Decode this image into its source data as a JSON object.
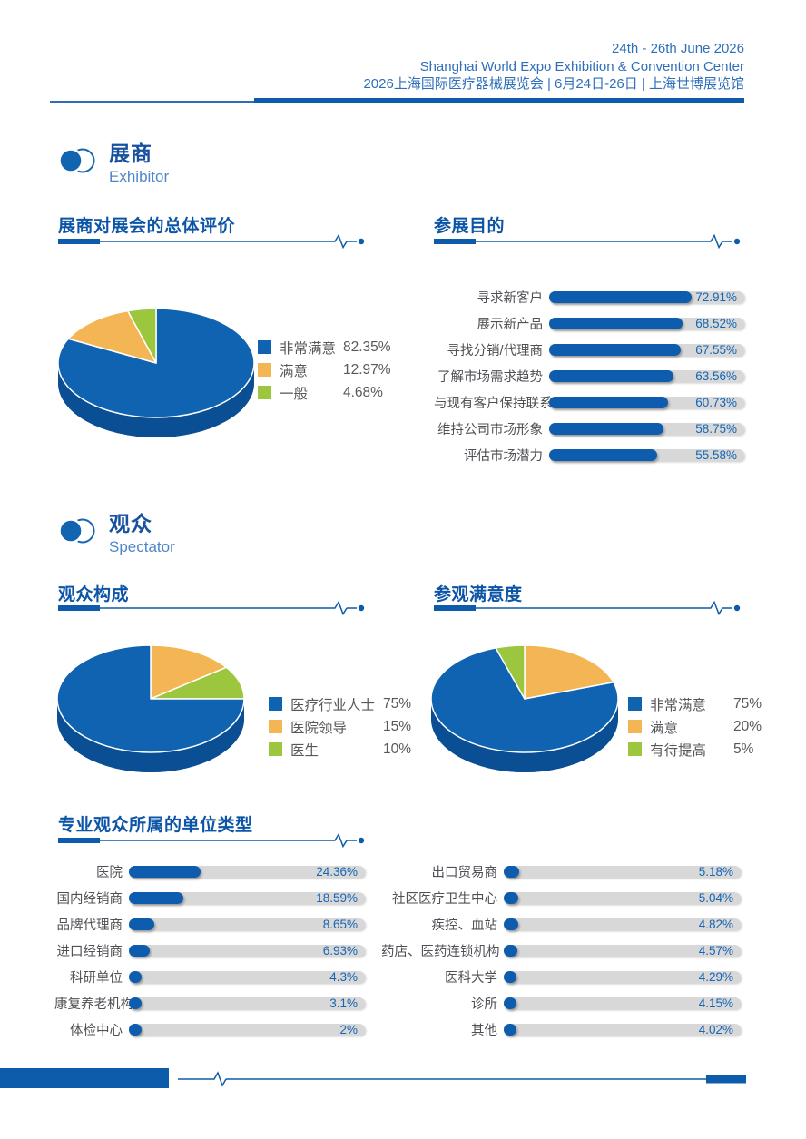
{
  "header": {
    "line1": "24th - 26th June 2026",
    "line2": "Shanghai World Expo Exhibition & Convention Center",
    "line3": "2026上海国际医疗器械展览会 | 6月24日-26日 | 上海世博展览馆"
  },
  "sections": {
    "exhibitor": {
      "zh": "展商",
      "en": "Exhibitor"
    },
    "spectator": {
      "zh": "观众",
      "en": "Spectator"
    }
  },
  "colors": {
    "primary_blue": "#0d5bab",
    "bar_fill": "#0e5cad",
    "bar_track": "#d8d8d8",
    "value_text": "#1565b5",
    "pie_blue": "#1063b1",
    "pie_orange": "#f4b654",
    "pie_green": "#9dc63f",
    "pie_side": "#0a4e94"
  },
  "chart_data": [
    {
      "type": "pie",
      "title": "展商对展会的总体评价",
      "labels": [
        "非常满意",
        "满意",
        "一般"
      ],
      "values": [
        82.35,
        12.97,
        4.68
      ],
      "colors": [
        "#1063b1",
        "#f4b654",
        "#9dc63f"
      ],
      "side_color": "#0a4e94",
      "slice_order": [
        0,
        1,
        2
      ],
      "legend_position": "right"
    },
    {
      "type": "bar",
      "title": "参展目的",
      "categories": [
        "寻求新客户",
        "展示新产品",
        "寻找分销/代理商",
        "了解市场需求趋势",
        "与现有客户保持联系",
        "维持公司市场形象",
        "评估市场潜力"
      ],
      "values": [
        72.91,
        68.52,
        67.55,
        63.56,
        60.73,
        58.75,
        55.58
      ],
      "value_suffix": "%",
      "xlim": [
        0,
        100
      ],
      "orientation": "horizontal"
    },
    {
      "type": "pie",
      "title": "观众构成",
      "labels": [
        "医疗行业人士",
        "医院领导",
        "医生"
      ],
      "values": [
        75,
        15,
        10
      ],
      "colors": [
        "#1063b1",
        "#f4b654",
        "#9dc63f"
      ],
      "side_color": "#0a4e94",
      "slice_order": [
        1,
        2,
        0
      ],
      "legend_position": "right"
    },
    {
      "type": "pie",
      "title": "参观满意度",
      "labels": [
        "非常满意",
        "满意",
        "有待提高"
      ],
      "values": [
        75,
        20,
        5
      ],
      "colors": [
        "#1063b1",
        "#f4b654",
        "#9dc63f"
      ],
      "side_color": "#0a4e94",
      "slice_order": [
        1,
        0,
        2
      ],
      "legend_position": "right"
    },
    {
      "type": "bar",
      "title": "专业观众所属的单位类型",
      "categories": [
        "医院",
        "国内经销商",
        "品牌代理商",
        "进口经销商",
        "科研单位",
        "康复养老机构",
        "体检中心"
      ],
      "values": [
        24.36,
        18.59,
        8.65,
        6.93,
        4.3,
        3.1,
        2
      ],
      "value_suffix": "%",
      "xlim": [
        0,
        80
      ],
      "orientation": "horizontal"
    },
    {
      "type": "bar",
      "title": "",
      "categories": [
        "出口贸易商",
        "社区医疗卫生中心",
        "疾控、血站",
        "药店、医药连锁机构",
        "医科大学",
        "诊所",
        "其他"
      ],
      "values": [
        5.18,
        5.04,
        4.82,
        4.57,
        4.29,
        4.15,
        4.02
      ],
      "value_suffix": "%",
      "xlim": [
        0,
        80
      ],
      "orientation": "horizontal"
    }
  ]
}
